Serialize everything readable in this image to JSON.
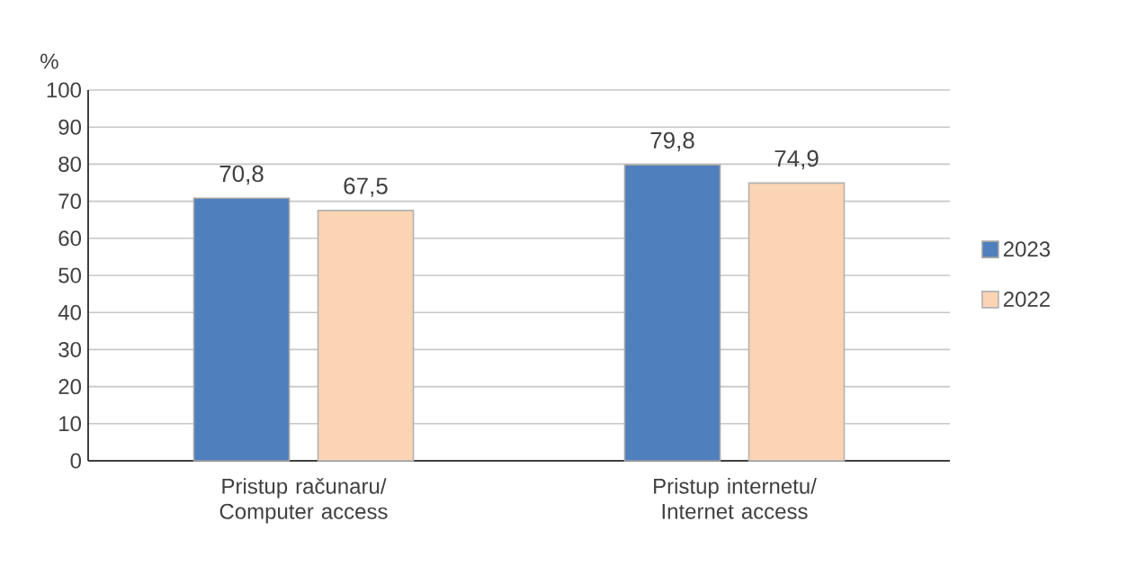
{
  "chart_data": {
    "type": "bar",
    "ylabel": "%",
    "categories": [
      "Pristup računaru/ Computer access",
      "Pristup internetu/ Internet access"
    ],
    "series": [
      {
        "name": "2023",
        "color": "#4f7fbd",
        "values": [
          70.8,
          79.8
        ],
        "value_labels": [
          "70,8",
          "79,8"
        ]
      },
      {
        "name": "2022",
        "color": "#fbd4b4",
        "values": [
          67.5,
          74.9
        ],
        "value_labels": [
          "67,5",
          "74,9"
        ]
      }
    ],
    "ylim": [
      0,
      100
    ],
    "yticks": [
      0,
      10,
      20,
      30,
      40,
      50,
      60,
      70,
      80,
      90,
      100
    ],
    "grid": "y",
    "legend": "right"
  }
}
